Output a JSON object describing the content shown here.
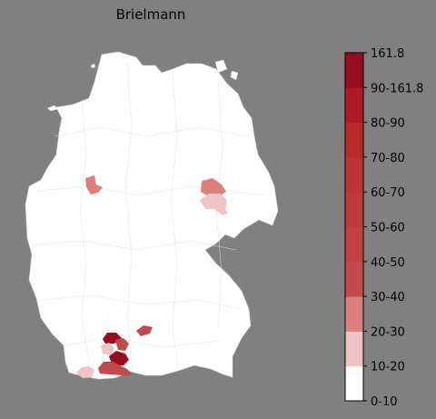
{
  "title": "Brielmann",
  "legend": {
    "bins": [
      {
        "label": "0-10",
        "color": "#ffffff"
      },
      {
        "label": "10-20",
        "color": "#f0c4c4"
      },
      {
        "label": "20-30",
        "color": "#dc7f7f"
      },
      {
        "label": "30-40",
        "color": "#c24a4a"
      },
      {
        "label": "40-50",
        "color": "#c24040"
      },
      {
        "label": "50-60",
        "color": "#c03a3a"
      },
      {
        "label": "60-70",
        "color": "#bd3434"
      },
      {
        "label": "70-80",
        "color": "#b82a2a"
      },
      {
        "label": "80-90",
        "color": "#ad1c26"
      },
      {
        "label": "90-161.8",
        "color": "#9a0d1f"
      }
    ],
    "max_label": "161.8"
  },
  "colors": {
    "background": "#808080",
    "land": "#ffffff",
    "border": "#cccccc"
  },
  "highlighted_districts": [
    {
      "area": "westphalia",
      "bin": "20-30"
    },
    {
      "area": "saxony-anhalt-north",
      "bin": "20-30"
    },
    {
      "area": "saxony-anhalt-south",
      "bin": "10-20"
    },
    {
      "area": "bavaria-swabia-north",
      "bin": "30-40"
    },
    {
      "area": "swabia-alb-a",
      "bin": "90-161.8"
    },
    {
      "area": "swabia-alb-b",
      "bin": "30-40"
    },
    {
      "area": "swabia-alb-c",
      "bin": "10-20"
    },
    {
      "area": "swabia-alb-d",
      "bin": "90-161.8"
    },
    {
      "area": "lake-constance-a",
      "bin": "30-40"
    },
    {
      "area": "lake-constance-b",
      "bin": "10-20"
    }
  ]
}
